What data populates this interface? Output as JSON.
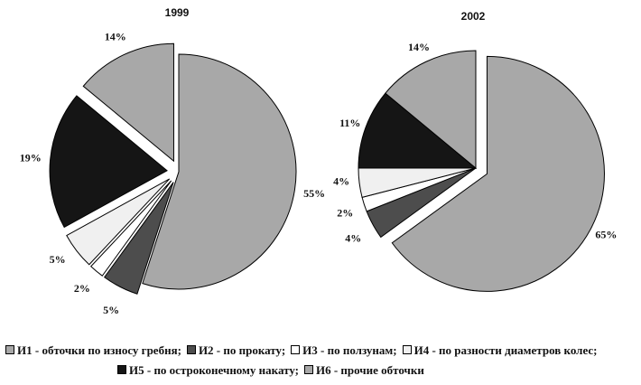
{
  "chart_data": [
    {
      "type": "pie",
      "title": "1999",
      "categories": [
        "И1",
        "И2",
        "И3",
        "И4",
        "И5",
        "И6"
      ],
      "values": [
        55,
        5,
        2,
        5,
        19,
        14
      ],
      "labels": [
        "55%",
        "5%",
        "2%",
        "5%",
        "19%",
        "14%"
      ],
      "exploded": [
        false,
        true,
        true,
        true,
        true,
        true
      ]
    },
    {
      "type": "pie",
      "title": "2002",
      "categories": [
        "И1",
        "И2",
        "И3",
        "И4",
        "И5",
        "И6"
      ],
      "values": [
        65,
        4,
        2,
        4,
        11,
        14
      ],
      "labels": [
        "65%",
        "4%",
        "2%",
        "4%",
        "11%",
        "14%"
      ],
      "exploded": [
        true,
        false,
        false,
        false,
        false,
        false
      ]
    }
  ],
  "colors": {
    "И1": "#a8a8a8",
    "И2": "#4d4d4d",
    "И3": "#ffffff",
    "И4": "#f0f0f0",
    "И5": "#151515",
    "И6": "#a8a8a8"
  },
  "legend": {
    "row1": [
      {
        "key": "И1",
        "text": "И1 - обточки по износу гребня;"
      },
      {
        "key": "И2",
        "text": "И2 - по прокату;"
      },
      {
        "key": "И3",
        "text": "И3 - по ползунам;"
      },
      {
        "key": "И4",
        "text": "И4 - по разности диаметров колес;"
      }
    ],
    "row2": [
      {
        "key": "И5",
        "text": "И5 - по остроконечному накату;"
      },
      {
        "key": "И6",
        "text": "И6 - прочие обточки"
      }
    ]
  }
}
